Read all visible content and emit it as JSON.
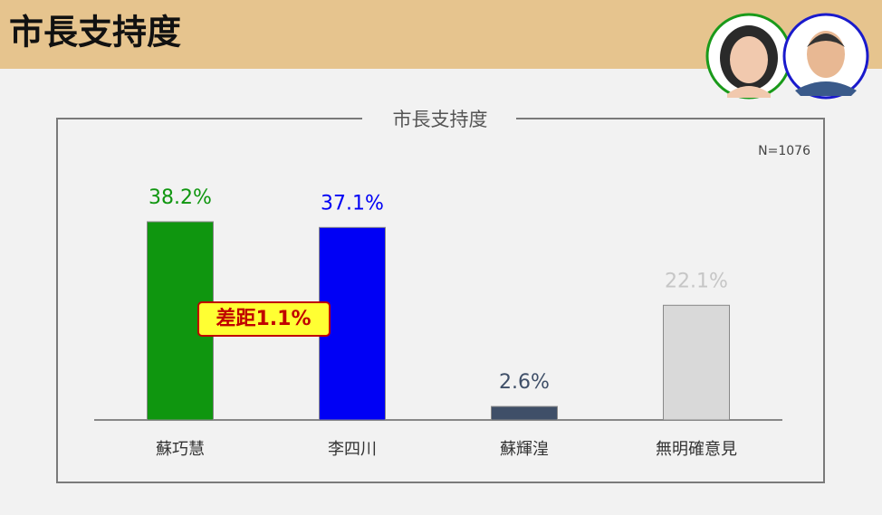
{
  "header": {
    "title": "市長支持度"
  },
  "chart_data": {
    "type": "bar",
    "title": "市長支持度",
    "note": "N=1076",
    "categories": [
      "蘇巧慧",
      "李四川",
      "蘇輝湟",
      "無明確意見"
    ],
    "values": [
      38.2,
      37.1,
      2.6,
      22.1
    ],
    "value_labels": [
      "38.2%",
      "37.1%",
      "2.6%",
      "22.1%"
    ],
    "colors": [
      "#0f960f",
      "#0000f5",
      "#3f4f68",
      "#d9d9d9"
    ],
    "label_colors": [
      "#0f960f",
      "#0000f5",
      "#3f4f68",
      "#c6c6c6"
    ],
    "annotation": "差距1.1%"
  }
}
